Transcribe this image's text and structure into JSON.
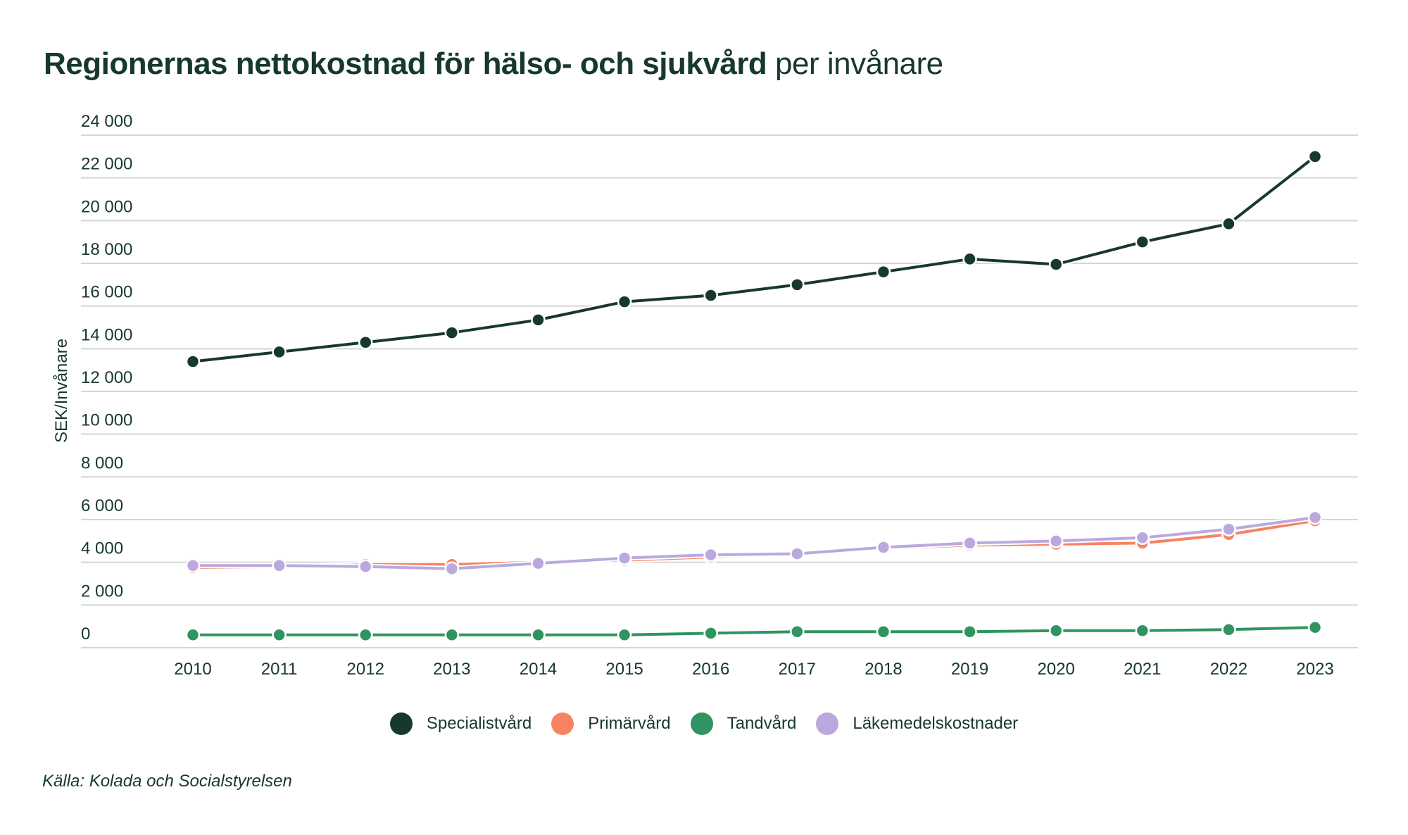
{
  "chart_data": {
    "type": "line",
    "title_bold": "Regionernas nettokostnad för hälso- och sjukvård",
    "title_light": "per invånare",
    "ylabel": "SEK/Invånare",
    "xlabel": "",
    "ylim": [
      0,
      24000
    ],
    "yticks": [
      0,
      2000,
      4000,
      6000,
      8000,
      10000,
      12000,
      14000,
      16000,
      18000,
      20000,
      22000,
      24000
    ],
    "ytick_labels": [
      "0",
      "2 000",
      "4 000",
      "6 000",
      "8 000",
      "10 000",
      "12 000",
      "14 000",
      "16 000",
      "18 000",
      "20 000",
      "22 000",
      "24 000"
    ],
    "grid": true,
    "legend_position": "bottom-center",
    "x": [
      "2010",
      "2011",
      "2012",
      "2013",
      "2014",
      "2015",
      "2016",
      "2017",
      "2018",
      "2019",
      "2020",
      "2021",
      "2022",
      "2023"
    ],
    "series": [
      {
        "name": "Specialistvård",
        "color": "#17392c",
        "values": [
          13400,
          13850,
          14300,
          14750,
          15350,
          16200,
          16500,
          17000,
          17600,
          18200,
          17950,
          19000,
          19850,
          23000
        ]
      },
      {
        "name": "Primärvård",
        "color": "#f88360",
        "values": [
          3750,
          3800,
          3900,
          3900,
          4000,
          4100,
          4250,
          4450,
          4650,
          4800,
          4850,
          4900,
          5300,
          5950
        ]
      },
      {
        "name": "Tandvård",
        "color": "#2f9461",
        "values": [
          600,
          600,
          600,
          600,
          600,
          600,
          680,
          750,
          750,
          750,
          800,
          800,
          850,
          950
        ]
      },
      {
        "name": "Läkemedelskostnader",
        "color": "#bba8de",
        "values": [
          3850,
          3850,
          3800,
          3700,
          3950,
          4200,
          4350,
          4400,
          4700,
          4900,
          5000,
          5150,
          5550,
          6100
        ]
      }
    ],
    "source": "Källa: Kolada och Socialstyrelsen"
  }
}
